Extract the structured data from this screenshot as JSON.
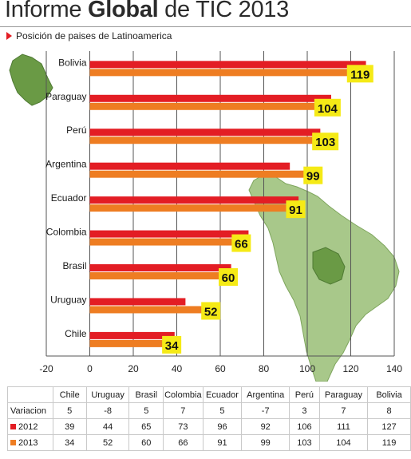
{
  "title": {
    "pre": "Informe ",
    "bold": "Global",
    "post": " de TIC 2013"
  },
  "subtitle": "Posición de paises de Latinoamerica",
  "colors": {
    "s2012": "#e31d24",
    "s2013": "#ee7d22",
    "label_bg": "#f5ea16",
    "map": "#a8c88a",
    "map_dark": "#6a9a45",
    "grid": "#555555"
  },
  "chart_data": {
    "type": "bar",
    "orientation": "horizontal",
    "categories": [
      "Bolivia",
      "Paraguay",
      "Perú",
      "Argentina",
      "Ecuador",
      "Colombia",
      "Brasil",
      "Uruguay",
      "Chile"
    ],
    "series": [
      {
        "name": "2012",
        "color": "#e31d24",
        "values": [
          127,
          111,
          106,
          92,
          96,
          73,
          65,
          44,
          39
        ]
      },
      {
        "name": "2013",
        "color": "#ee7d22",
        "values": [
          119,
          104,
          103,
          99,
          91,
          66,
          60,
          52,
          34
        ]
      }
    ],
    "data_labels": [
      "119",
      "104",
      "103",
      "99",
      "91",
      "66",
      "60",
      "52",
      "34"
    ],
    "xlim": [
      -20,
      140
    ],
    "xticks": [
      "-20",
      "0",
      "20",
      "40",
      "60",
      "80",
      "100",
      "120",
      "140"
    ],
    "grid": "vertical"
  },
  "table": {
    "header": [
      "",
      "Chile",
      "Uruguay",
      "Brasil",
      "Colombia",
      "Ecuador",
      "Argentina",
      "Perú",
      "Paraguay",
      "Bolivia"
    ],
    "rows": [
      {
        "label": "Variacion",
        "swatch": "",
        "values": [
          "5",
          "-8",
          "5",
          "7",
          "5",
          "-7",
          "3",
          "7",
          "8"
        ]
      },
      {
        "label": "2012",
        "swatch": "#e31d24",
        "values": [
          "39",
          "44",
          "65",
          "73",
          "96",
          "92",
          "106",
          "111",
          "127"
        ]
      },
      {
        "label": "2013",
        "swatch": "#ee7d22",
        "values": [
          "34",
          "52",
          "60",
          "66",
          "91",
          "99",
          "103",
          "104",
          "119"
        ]
      }
    ]
  }
}
